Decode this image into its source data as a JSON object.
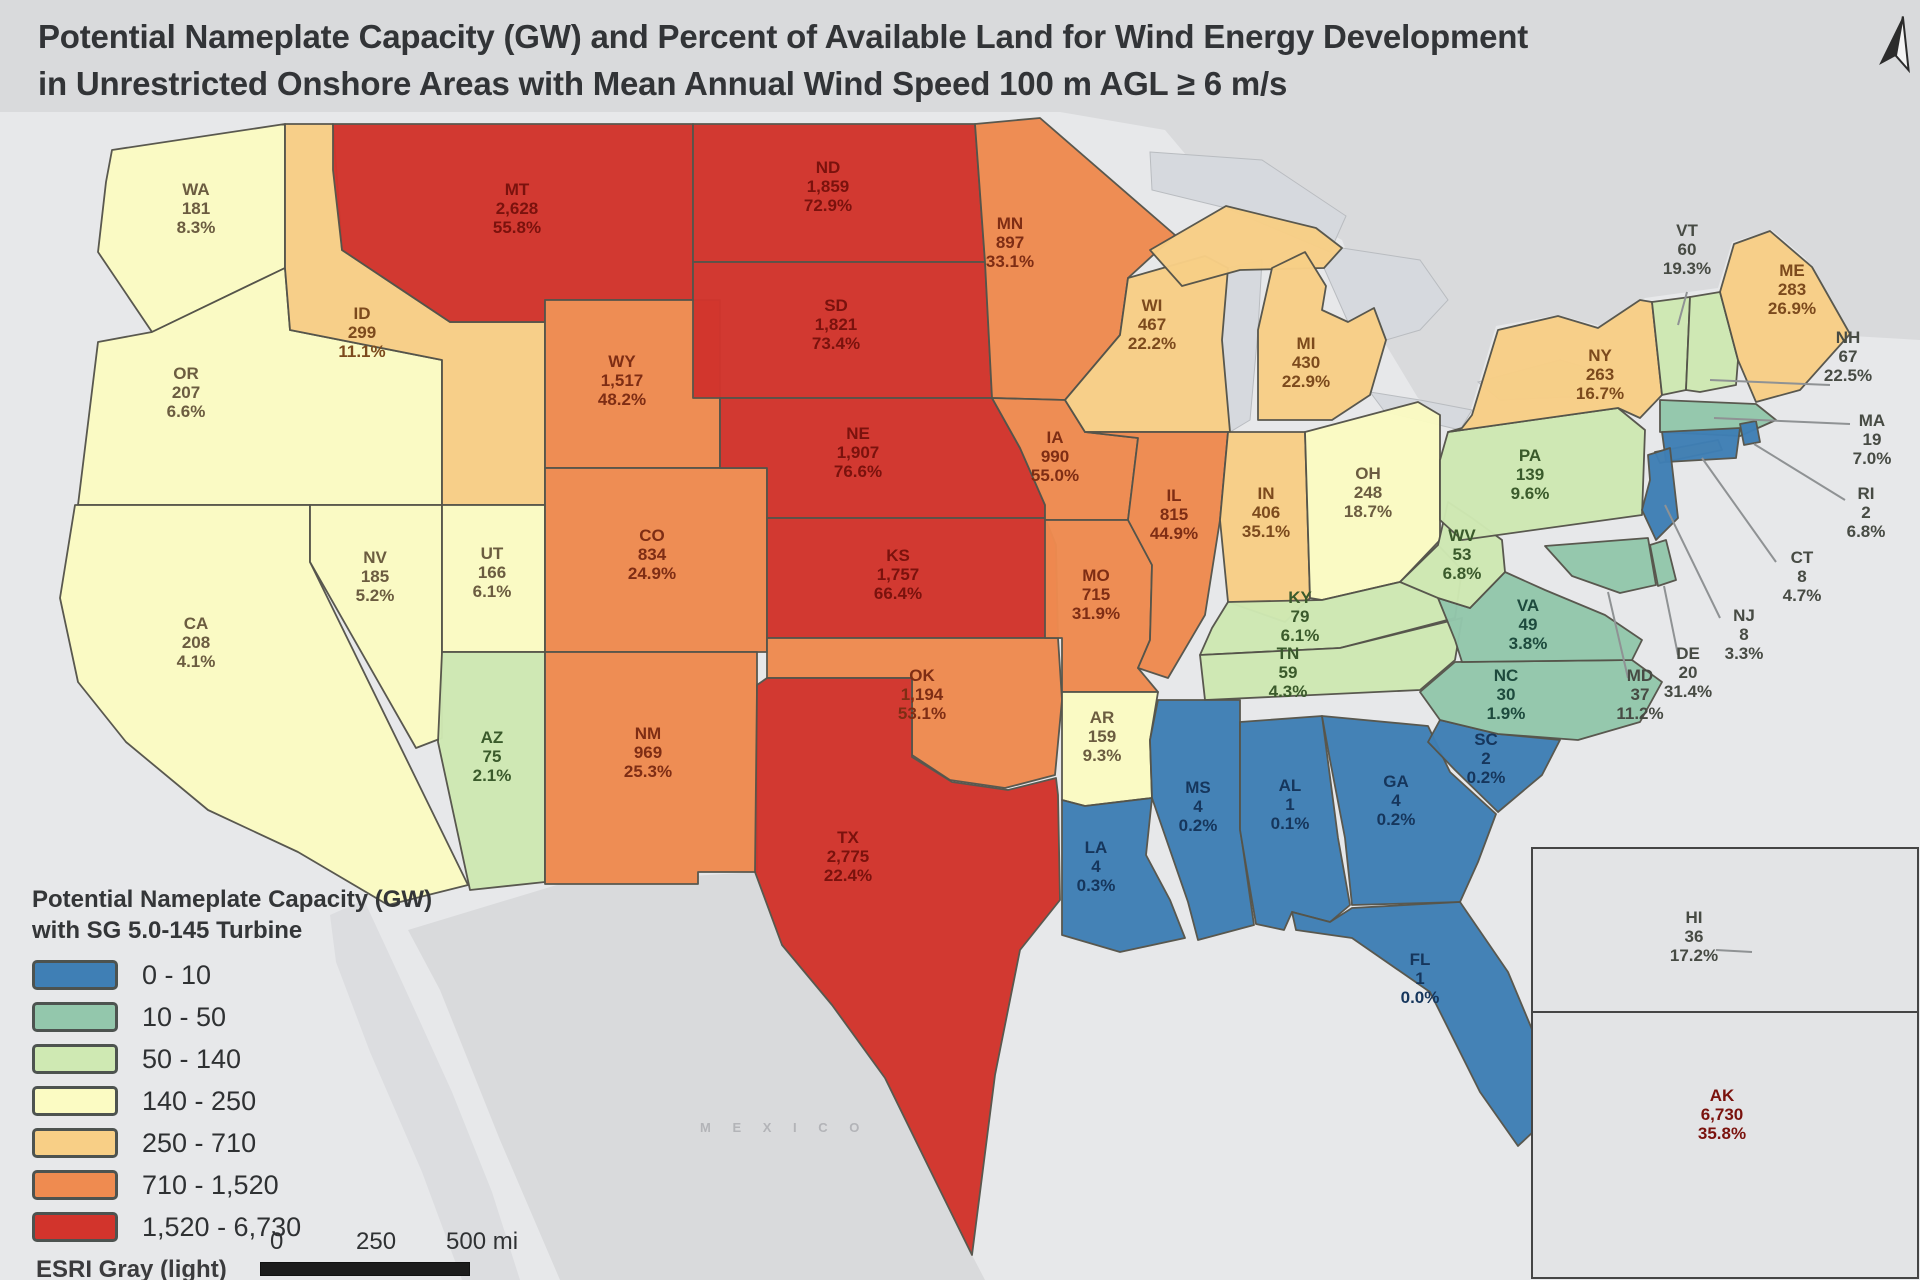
{
  "title": {
    "line1": "Potential Nameplate Capacity (GW) and Percent of Available Land for Wind Energy Development",
    "line2": "in Unrestricted Onshore Areas with Mean Annual Wind Speed 100 m AGL ≥ 6 m/s"
  },
  "legend": {
    "title_line1": "Potential Nameplate Capacity (GW)",
    "title_line2": "with SG 5.0-145 Turbine",
    "basemap_credit": "ESRI Gray (light)",
    "classes": [
      {
        "range": "0 - 10",
        "color": "#3f7fb5"
      },
      {
        "range": "10 - 50",
        "color": "#93c7ac"
      },
      {
        "range": "50 - 140",
        "color": "#cfe9b3"
      },
      {
        "range": "140 - 250",
        "color": "#fbfbc3"
      },
      {
        "range": "250 - 710",
        "color": "#f8cf86"
      },
      {
        "range": "710 - 1,520",
        "color": "#ef8b50"
      },
      {
        "range": "1,520 - 6,730",
        "color": "#d2342c"
      }
    ]
  },
  "scale_bar": {
    "ticks": [
      "0",
      "250",
      "500 mi"
    ]
  },
  "annotations": {
    "mexico_label": "M E X I C O"
  },
  "chart_data": {
    "type": "heatmap",
    "title": "Potential Nameplate Capacity (GW) and Percent of Available Land for Wind Energy Development in Unrestricted Onshore Areas with Mean Annual Wind Speed 100 m AGL ≥ 6 m/s",
    "legend_position": "bottom-left",
    "classes_gw": [
      "0 - 10",
      "10 - 50",
      "50 - 140",
      "140 - 250",
      "250 - 710",
      "710 - 1,520",
      "1,520 - 6,730"
    ]
  },
  "states": [
    {
      "abbr": "WA",
      "value": "181",
      "pct": "8.3%"
    },
    {
      "abbr": "OR",
      "value": "207",
      "pct": "6.6%"
    },
    {
      "abbr": "CA",
      "value": "208",
      "pct": "4.1%"
    },
    {
      "abbr": "NV",
      "value": "185",
      "pct": "5.2%"
    },
    {
      "abbr": "ID",
      "value": "299",
      "pct": "11.1%"
    },
    {
      "abbr": "UT",
      "value": "166",
      "pct": "6.1%"
    },
    {
      "abbr": "AZ",
      "value": "75",
      "pct": "2.1%"
    },
    {
      "abbr": "MT",
      "value": "2,628",
      "pct": "55.8%"
    },
    {
      "abbr": "WY",
      "value": "1,517",
      "pct": "48.2%"
    },
    {
      "abbr": "CO",
      "value": "834",
      "pct": "24.9%"
    },
    {
      "abbr": "NM",
      "value": "969",
      "pct": "25.3%"
    },
    {
      "abbr": "ND",
      "value": "1,859",
      "pct": "72.9%"
    },
    {
      "abbr": "SD",
      "value": "1,821",
      "pct": "73.4%"
    },
    {
      "abbr": "NE",
      "value": "1,907",
      "pct": "76.6%"
    },
    {
      "abbr": "KS",
      "value": "1,757",
      "pct": "66.4%"
    },
    {
      "abbr": "OK",
      "value": "1,194",
      "pct": "53.1%"
    },
    {
      "abbr": "TX",
      "value": "2,775",
      "pct": "22.4%"
    },
    {
      "abbr": "MN",
      "value": "897",
      "pct": "33.1%"
    },
    {
      "abbr": "IA",
      "value": "990",
      "pct": "55.0%"
    },
    {
      "abbr": "MO",
      "value": "715",
      "pct": "31.9%"
    },
    {
      "abbr": "AR",
      "value": "159",
      "pct": "9.3%"
    },
    {
      "abbr": "LA",
      "value": "4",
      "pct": "0.3%"
    },
    {
      "abbr": "WI",
      "value": "467",
      "pct": "22.2%"
    },
    {
      "abbr": "IL",
      "value": "815",
      "pct": "44.9%"
    },
    {
      "abbr": "IN",
      "value": "406",
      "pct": "35.1%"
    },
    {
      "abbr": "MI",
      "value": "430",
      "pct": "22.9%"
    },
    {
      "abbr": "OH",
      "value": "248",
      "pct": "18.7%"
    },
    {
      "abbr": "KY",
      "value": "79",
      "pct": "6.1%"
    },
    {
      "abbr": "TN",
      "value": "59",
      "pct": "4.3%"
    },
    {
      "abbr": "MS",
      "value": "4",
      "pct": "0.2%"
    },
    {
      "abbr": "AL",
      "value": "1",
      "pct": "0.1%"
    },
    {
      "abbr": "GA",
      "value": "4",
      "pct": "0.2%"
    },
    {
      "abbr": "FL",
      "value": "1",
      "pct": "0.0%"
    },
    {
      "abbr": "SC",
      "value": "2",
      "pct": "0.2%"
    },
    {
      "abbr": "NC",
      "value": "30",
      "pct": "1.9%"
    },
    {
      "abbr": "VA",
      "value": "49",
      "pct": "3.8%"
    },
    {
      "abbr": "WV",
      "value": "53",
      "pct": "6.8%"
    },
    {
      "abbr": "PA",
      "value": "139",
      "pct": "9.6%"
    },
    {
      "abbr": "NY",
      "value": "263",
      "pct": "16.7%"
    },
    {
      "abbr": "VT",
      "value": "60",
      "pct": "19.3%"
    },
    {
      "abbr": "NH",
      "value": "67",
      "pct": "22.5%"
    },
    {
      "abbr": "ME",
      "value": "283",
      "pct": "26.9%"
    },
    {
      "abbr": "MA",
      "value": "19",
      "pct": "7.0%"
    },
    {
      "abbr": "RI",
      "value": "2",
      "pct": "6.8%"
    },
    {
      "abbr": "CT",
      "value": "8",
      "pct": "4.7%"
    },
    {
      "abbr": "NJ",
      "value": "8",
      "pct": "3.3%"
    },
    {
      "abbr": "DE",
      "value": "20",
      "pct": "31.4%"
    },
    {
      "abbr": "MD",
      "value": "37",
      "pct": "11.2%"
    },
    {
      "abbr": "HI",
      "value": "36",
      "pct": "17.2%"
    },
    {
      "abbr": "AK",
      "value": "6,730",
      "pct": "35.8%"
    }
  ]
}
